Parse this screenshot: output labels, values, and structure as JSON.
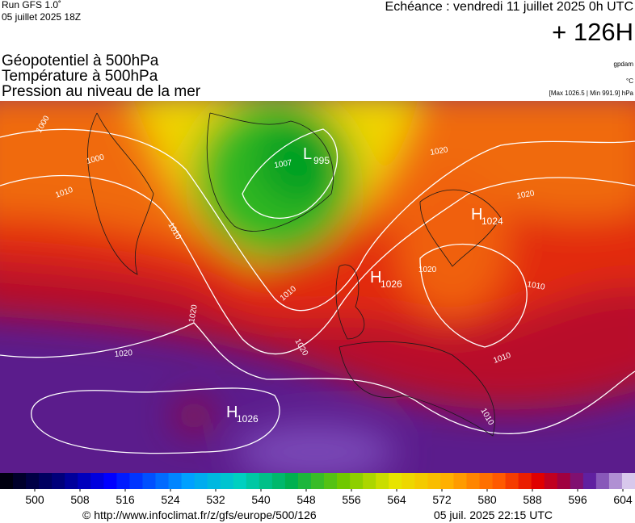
{
  "header": {
    "run": "Run GFS 1.0˚",
    "run_date": "05 juillet 2025 18Z",
    "valid": "Echéance : vendredi 11 juillet 2025 0h UTC",
    "lead": "+ 126H",
    "fields": [
      "Géopotentiel à 500hPa",
      "Température à 500hPa",
      "Pression au niveau de la mer"
    ],
    "units": [
      "gpdam",
      "°C",
      "[Max 1026.5 | Min 991.9] hPa"
    ]
  },
  "map": {
    "centers": [
      {
        "letter": "L",
        "value": "995"
      },
      {
        "letter": "H",
        "value": "1024"
      },
      {
        "letter": "H",
        "value": "1026"
      },
      {
        "letter": "H",
        "value": "1026"
      }
    ],
    "contour_labels": [
      "1000",
      "1000",
      "1010",
      "1010",
      "1020",
      "1020",
      "1010",
      "1020",
      "1020",
      "1020",
      "1020",
      "1010",
      "1010",
      "1010",
      "1007"
    ]
  },
  "colorbar": {
    "ticks": [
      500,
      508,
      516,
      524,
      532,
      540,
      548,
      556,
      564,
      572,
      580,
      588,
      596,
      604
    ]
  },
  "footer": {
    "source": "© http://www.infoclimat.fr/z/gfs/europe/500/126",
    "generated": "05 juil. 2025 22:15 UTC"
  }
}
